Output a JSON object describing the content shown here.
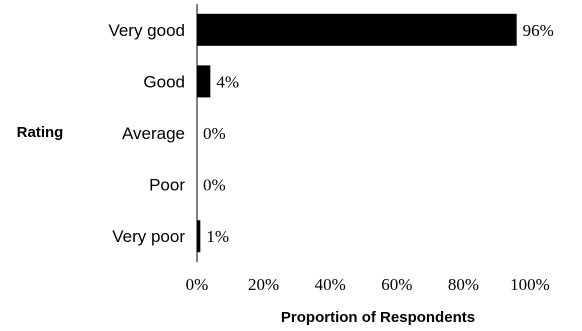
{
  "chart_data": {
    "type": "bar",
    "orientation": "horizontal",
    "categories": [
      "Very good",
      "Good",
      "Average",
      "Poor",
      "Very poor"
    ],
    "values": [
      96,
      4,
      0,
      0,
      1
    ],
    "value_labels": [
      "96%",
      "4%",
      "0%",
      "0%",
      "1%"
    ],
    "xlabel": "Proportion of Respondents",
    "ylabel": "Rating",
    "xlim": [
      0,
      100
    ],
    "xticks": [
      0,
      20,
      40,
      60,
      80,
      100
    ],
    "xtick_labels": [
      "0%",
      "20%",
      "40%",
      "60%",
      "80%",
      "100%"
    ],
    "grid": false,
    "bar_color": "#000000"
  }
}
